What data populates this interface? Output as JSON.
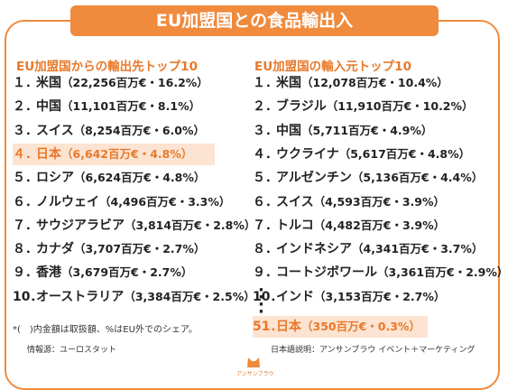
{
  "header": {
    "title": "EU加盟国との食品輸出入"
  },
  "lists": [
    {
      "heading": "EU加盟国からの輸出先トップ10",
      "items": [
        {
          "rank": "１．",
          "name": "米国",
          "detail": "（22,256百万€・16.2%）"
        },
        {
          "rank": "２．",
          "name": "中国",
          "detail": "（11,101百万€・8.1%）"
        },
        {
          "rank": "３．",
          "name": "スイス",
          "detail": "（8,254百万€・6.0%）"
        },
        {
          "rank": "４．",
          "name": "日本",
          "detail": "（6,642百万€・4.8%）",
          "highlight": true
        },
        {
          "rank": "５．",
          "name": "ロシア",
          "detail": "（6,624百万€・4.8%）"
        },
        {
          "rank": "６．",
          "name": "ノルウェイ",
          "detail": "（4,496百万€・3.3%）"
        },
        {
          "rank": "７．",
          "name": "サウジアラビア",
          "detail": "（3,814百万€・2.8%）"
        },
        {
          "rank": "８．",
          "name": "カナダ",
          "detail": "（3,707百万€・2.7%）"
        },
        {
          "rank": "９．",
          "name": "香港",
          "detail": "（3,679百万€・2.7%）"
        },
        {
          "rank": "10．",
          "name": "オーストラリア",
          "detail": "（3,384百万€・2.5%）"
        }
      ]
    },
    {
      "heading": "EU加盟国の輸入元トップ10",
      "items": [
        {
          "rank": "１．",
          "name": "米国",
          "detail": "（12,078百万€・10.4%）"
        },
        {
          "rank": "２．",
          "name": "ブラジル",
          "detail": "（11,910百万€・10.2%）"
        },
        {
          "rank": "３．",
          "name": "中国",
          "detail": "（5,711百万€・4.9%）"
        },
        {
          "rank": "４．",
          "name": "ウクライナ",
          "detail": "（5,617百万€・4.8%）"
        },
        {
          "rank": "５．",
          "name": "アルゼンチン",
          "detail": "（5,136百万€・4.4%）"
        },
        {
          "rank": "６．",
          "name": "スイス",
          "detail": "（4,593百万€・3.9%）"
        },
        {
          "rank": "７．",
          "name": "トルコ",
          "detail": "（4,482百万€・3.9%）"
        },
        {
          "rank": "８．",
          "name": "インドネシア",
          "detail": "（4,341百万€・3.7%）"
        },
        {
          "rank": "９．",
          "name": "コートジボワール",
          "detail": "（3,361百万€・2.9%）"
        },
        {
          "rank": "10．",
          "name": "インド",
          "detail": "（3,153百万€・2.7%）"
        },
        {
          "rank": "51．",
          "name": "日本",
          "detail": "（350百万€・0.3%）",
          "highlight": true
        }
      ]
    }
  ],
  "footer": {
    "note": "*(　)内金額は取扱額、%はEU外でのシェア。",
    "source": "情報源：ユーロスタット",
    "credit": "日本語説明：アンサンブラウ イベント＋マーケティング",
    "logo": "アンサンブラウ"
  }
}
